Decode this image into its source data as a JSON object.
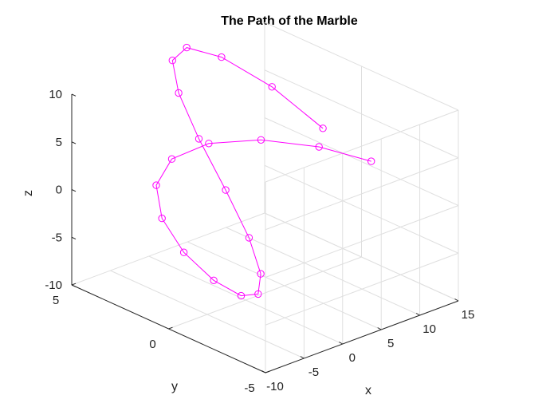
{
  "chart_data": {
    "type": "line3d",
    "title": "The Path of the Marble",
    "xlabel": "x",
    "ylabel": "y",
    "zlabel": "z",
    "xlim": [
      -10,
      15
    ],
    "ylim": [
      -5,
      5
    ],
    "zlim": [
      -10,
      10
    ],
    "xticks": [
      -10,
      -5,
      0,
      5,
      10,
      15
    ],
    "yticks": [
      -5,
      0,
      5
    ],
    "zticks": [
      -10,
      -5,
      0,
      5,
      10
    ],
    "grid": true,
    "marker": "circle",
    "colors": {
      "series": "#ff00ff"
    },
    "series": [
      {
        "x": [
          10.0,
          9.9,
          8.73,
          6.55,
          3.57,
          0.16,
          -3.31,
          -6.52,
          -9.14,
          -10.91,
          -11.65,
          -11.27,
          -9.8,
          -7.4,
          -4.28,
          -0.78,
          2.74,
          5.95,
          8.48,
          10.05,
          10.49
        ],
        "y": [
          0.0,
          2.59,
          4.73,
          5.66,
          5.21,
          3.53,
          1.1,
          -1.56,
          -3.81,
          -5.12,
          -5.28,
          -4.25,
          -2.25,
          0.25,
          2.62,
          4.31,
          4.91,
          4.28,
          2.59,
          0.22,
          -2.3
        ],
        "z": [
          5.0,
          6.99,
          8.49,
          9.29,
          9.26,
          8.42,
          6.9,
          4.94,
          2.8,
          0.75,
          -0.99,
          -2.24,
          -2.91,
          -3.0,
          -2.55,
          -1.69,
          -0.55,
          0.69,
          1.86,
          2.84,
          3.51
        ]
      }
    ]
  }
}
